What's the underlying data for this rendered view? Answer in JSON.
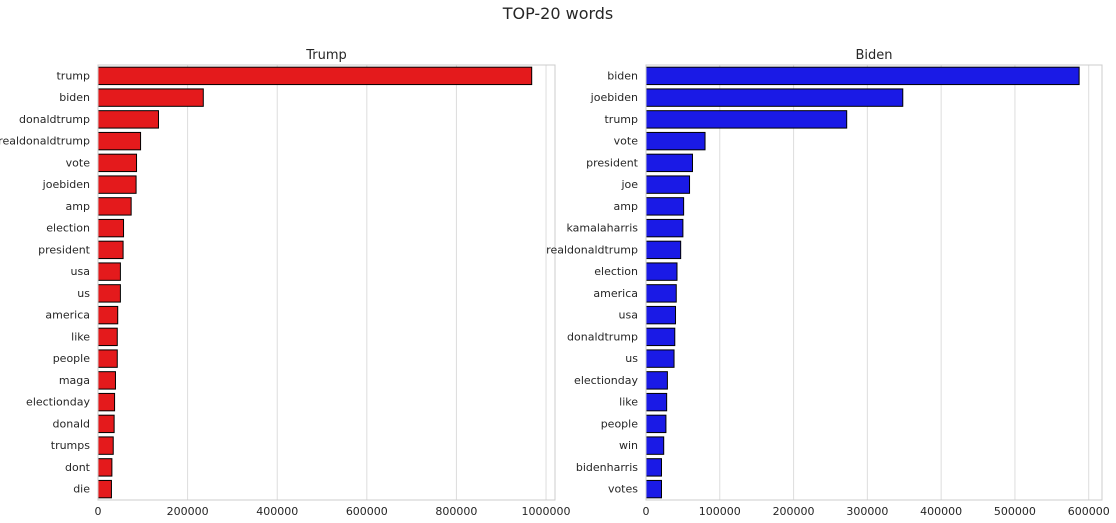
{
  "figure": {
    "suptitle": "TOP-20 words"
  },
  "colors": {
    "trump_bar": "#e41a1c",
    "biden_bar": "#1a1ae6",
    "edge": "#000000",
    "grid": "#dddddd",
    "text": "#262626"
  },
  "chart_data": [
    {
      "type": "bar",
      "orientation": "horizontal",
      "title": "Trump",
      "xlabel": "",
      "ylabel": "",
      "grid": true,
      "xlim": [
        0,
        1020000
      ],
      "xticks": [
        0,
        200000,
        400000,
        600000,
        800000,
        1000000
      ],
      "xtick_labels": [
        "0",
        "200000",
        "400000",
        "600000",
        "800000",
        "1000000"
      ],
      "color": "#e41a1c",
      "categories": [
        "trump",
        "biden",
        "donaldtrump",
        "realdonaldtrump",
        "vote",
        "joebiden",
        "amp",
        "election",
        "president",
        "usa",
        "us",
        "america",
        "like",
        "people",
        "maga",
        "electionday",
        "donald",
        "trumps",
        "dont",
        "die"
      ],
      "values": [
        968000,
        235000,
        135000,
        95000,
        86000,
        85000,
        74000,
        57000,
        56000,
        50000,
        50000,
        44000,
        43000,
        43000,
        39000,
        37000,
        36000,
        34000,
        31000,
        30000
      ]
    },
    {
      "type": "bar",
      "orientation": "horizontal",
      "title": "Biden",
      "xlabel": "",
      "ylabel": "",
      "grid": true,
      "xlim": [
        0,
        618000
      ],
      "xticks": [
        0,
        100000,
        200000,
        300000,
        400000,
        500000,
        600000
      ],
      "xtick_labels": [
        "0",
        "100000",
        "200000",
        "300000",
        "400000",
        "500000",
        "600000"
      ],
      "color": "#1a1ae6",
      "categories": [
        "biden",
        "joebiden",
        "trump",
        "vote",
        "president",
        "joe",
        "amp",
        "kamalaharris",
        "realdonaldtrump",
        "election",
        "america",
        "usa",
        "donaldtrump",
        "us",
        "electionday",
        "like",
        "people",
        "win",
        "bidenharris",
        "votes"
      ],
      "values": [
        587000,
        348000,
        272000,
        80000,
        63000,
        59000,
        51000,
        50000,
        47000,
        42000,
        41000,
        40000,
        39000,
        38000,
        29000,
        28000,
        27000,
        24000,
        21000,
        21000
      ]
    }
  ]
}
